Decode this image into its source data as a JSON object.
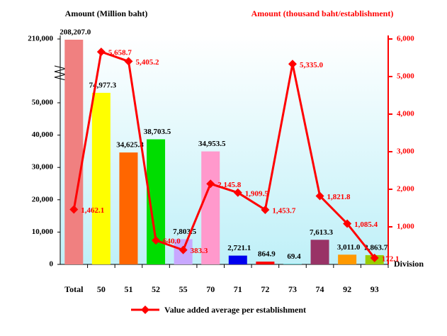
{
  "chart_data": {
    "type": "bar_line",
    "y_title": "Amount (Million baht)",
    "y2_title": "Amount (thousand baht/establishment)",
    "x_title": "Division",
    "categories": [
      "Total",
      "50",
      "51",
      "52",
      "55",
      "70",
      "71",
      "72",
      "73",
      "74",
      "92",
      "93"
    ],
    "ylim": [
      0,
      210000
    ],
    "yticks": [
      0,
      {
        "value": 10000,
        "label": "10,000"
      },
      {
        "value": 20000,
        "label": "20,000"
      },
      {
        "value": 30000,
        "label": "30,000"
      },
      {
        "value": 40000,
        "label": "40,000"
      },
      {
        "value": 50000,
        "label": "50,000"
      },
      {
        "value": 210000,
        "label": "210,000"
      }
    ],
    "y_axis_break": true,
    "y2lim": [
      0,
      6000
    ],
    "y2ticks": [
      {
        "value": 1000,
        "label": "1,000"
      },
      {
        "value": 2000,
        "label": "2,000"
      },
      {
        "value": 3000,
        "label": "3,000"
      },
      {
        "value": 4000,
        "label": "4,000"
      },
      {
        "value": 5000,
        "label": "5,000"
      },
      {
        "value": 6000,
        "label": "6,000"
      }
    ],
    "bars": {
      "values": [
        208207.0,
        74977.3,
        34625.8,
        38703.5,
        7803.5,
        34953.5,
        2721.1,
        864.9,
        69.4,
        7613.3,
        3011.0,
        2863.7
      ],
      "value_labels": [
        "208,207.0",
        "74,977.3",
        "34,625.8",
        "38,703.5",
        "7,803.5",
        "34,953.5",
        "2,721.1",
        "864.9",
        "69.4",
        "7,613.3",
        "3,011.0",
        "2,863.7"
      ],
      "colors": [
        "#f08080",
        "#ffff00",
        "#ff6600",
        "#00dd00",
        "#c8a8ff",
        "#ff99cc",
        "#0000ee",
        "#ff0000",
        "#00ffff",
        "#993366",
        "#ff9900",
        "#99cc00"
      ]
    },
    "series": [
      {
        "name": "Value added average per establishment",
        "color": "#ff0000",
        "axis": "y2",
        "values": [
          1462.1,
          5658.7,
          5405.2,
          640.0,
          383.3,
          2145.8,
          1909.5,
          1453.7,
          5335.0,
          1821.8,
          1085.4,
          172.1
        ],
        "value_labels": [
          "1,462.1",
          "5,658.7",
          "5,405.2",
          "640.0",
          "383.3",
          "2,145.8",
          "1,909.5",
          "1,453.7",
          "5,335.0",
          "1,821.8",
          "1,085.4",
          "172.1"
        ]
      }
    ]
  }
}
